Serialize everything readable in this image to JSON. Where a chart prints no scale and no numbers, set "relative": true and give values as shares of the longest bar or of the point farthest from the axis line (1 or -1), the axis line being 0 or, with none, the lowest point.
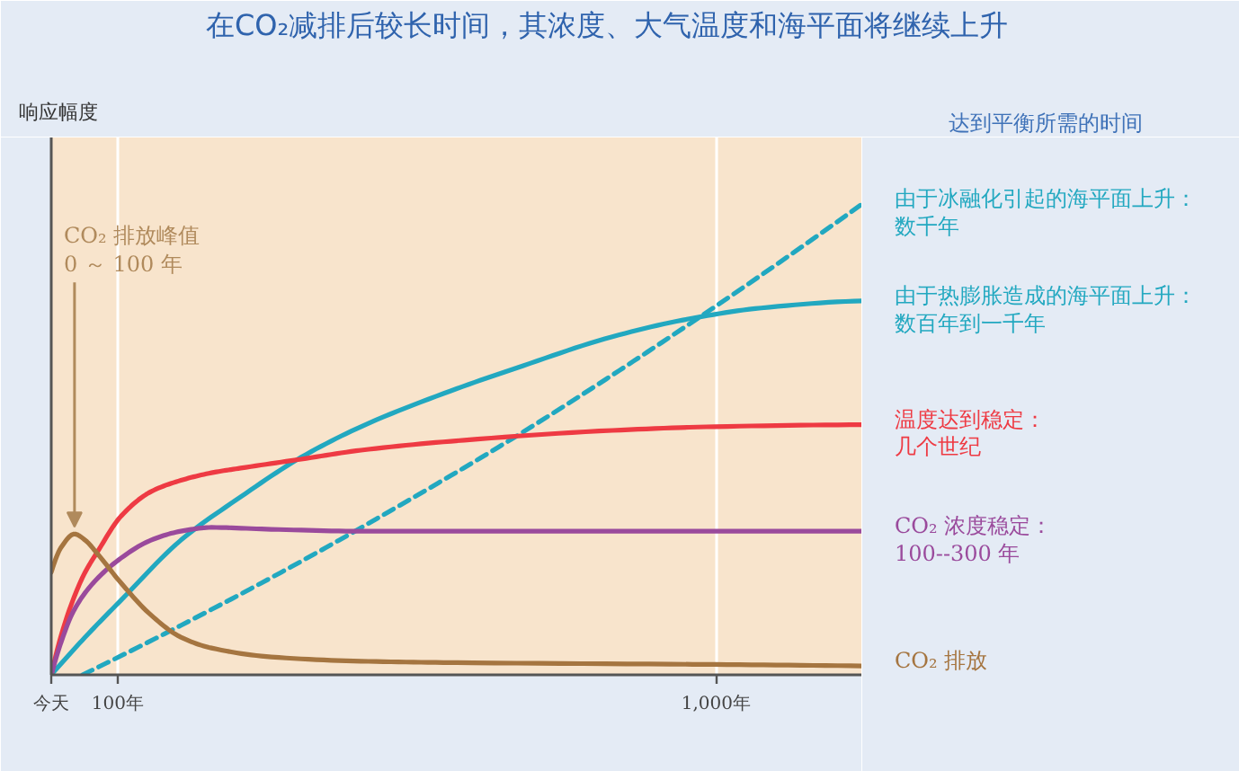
{
  "chart_data": {
    "type": "line",
    "title": "在CO₂减排后较长时间，其浓度、大气温度和海平面将继续上升",
    "ylabel": "响应幅度",
    "relative": true,
    "xlim": [
      0,
      1220
    ],
    "xticks": [
      {
        "value": 0,
        "label": "今天"
      },
      {
        "value": 100,
        "label": "100年"
      },
      {
        "value": 1000,
        "label": "1,000年"
      }
    ],
    "tick_labels": "x",
    "grid": "x",
    "annotations": [
      {
        "text": "CO₂ 排放峰值\n0 ～ 100 年",
        "x": 35,
        "y": 0.299
      },
      "达到平衡所需的时间"
    ],
    "series": [
      {
        "name": "由于冰融化引起的海平面上升：数千年",
        "color": "#22a8c0",
        "line_style": "dashed",
        "x": [
          47,
          195,
          376,
          601,
          709,
          960,
          1220
        ],
        "values": [
          0,
          0.105,
          0.241,
          0.423,
          0.515,
          0.745,
          1
        ]
      },
      {
        "name": "由于热膨胀造成的海平面上升：数百年到一千年",
        "color": "#22a8c0",
        "x": [
          0,
          51,
          106,
          195,
          285,
          376,
          466,
          601,
          709,
          844,
          960,
          1068,
          1220
        ],
        "values": [
          0,
          0.08,
          0.16,
          0.286,
          0.378,
          0.462,
          0.527,
          0.603,
          0.656,
          0.718,
          0.756,
          0.779,
          0.794
        ]
      },
      {
        "name": "温度达到稳定：几个世纪",
        "color": "#ee3a43",
        "x": [
          0,
          15,
          33,
          51,
          69,
          105,
          150,
          195,
          241,
          285,
          376,
          466,
          601,
          844,
          998,
          1220
        ],
        "values": [
          0,
          0.084,
          0.16,
          0.218,
          0.26,
          0.337,
          0.389,
          0.413,
          0.429,
          0.439,
          0.458,
          0.477,
          0.496,
          0.519,
          0.527,
          0.531
        ]
      },
      {
        "name": "CO₂ 浓度稳定：\n100--300 年",
        "color": "#9a4a9c",
        "x": [
          0,
          15,
          33,
          60,
          105,
          150,
          195,
          241,
          331,
          466,
          1220
        ],
        "values": [
          0,
          0.07,
          0.134,
          0.19,
          0.248,
          0.286,
          0.305,
          0.313,
          0.309,
          0.305,
          0.305
        ]
      },
      {
        "name": "CO₂ 排放",
        "color": "#a57540",
        "x": [
          0,
          15,
          35,
          51,
          69,
          105,
          150,
          195,
          241,
          331,
          466,
          601,
          998,
          1220
        ],
        "values": [
          0.218,
          0.271,
          0.299,
          0.286,
          0.258,
          0.195,
          0.127,
          0.08,
          0.057,
          0.038,
          0.029,
          0.026,
          0.022,
          0.019
        ]
      }
    ]
  }
}
